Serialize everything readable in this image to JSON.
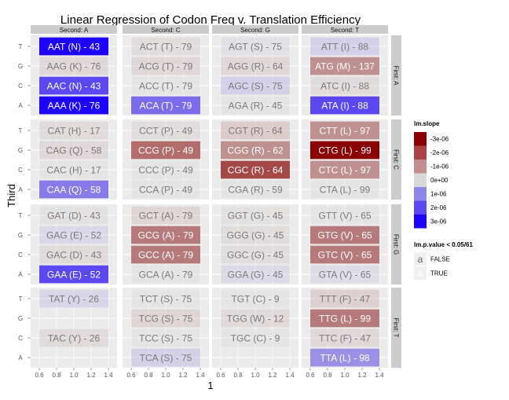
{
  "chart_data": {
    "type": "heatmap",
    "title": "Linear Regression of Codon Freq v. Translation Efficiency",
    "xlabel": "1",
    "ylabel": "Third",
    "col_facets": [
      "Second: A",
      "Second: C",
      "Second: G",
      "Second: T"
    ],
    "row_facets": [
      "First: A",
      "First: C",
      "First: G",
      "First: T"
    ],
    "y_ticks": [
      "T",
      "G",
      "C",
      "A"
    ],
    "x_ticks": [
      "0.6",
      "0.8",
      "1.0",
      "1.2",
      "1.4"
    ],
    "xlim": [
      0.5,
      1.5
    ],
    "legend_fill": {
      "title": "lm.slope",
      "labels": [
        "-3e-06",
        "-2e-06",
        "-1e-06",
        "0e+00",
        "1e-06",
        "2e-06",
        "3e-06"
      ],
      "colors": [
        "#8b0000",
        "#a94344",
        "#c48d8d",
        "#d8d8d8",
        "#8f87e8",
        "#5a48f0",
        "#1e00ff"
      ]
    },
    "legend_alpha": {
      "title": "lm.p.value < 0.05/61",
      "labels": [
        "FALSE",
        "TRUE"
      ]
    },
    "cells": [
      {
        "facet_row": 0,
        "facet_col": 0,
        "third": "T",
        "label": "AAT (N) - 43",
        "slope": 3.0,
        "sig": true
      },
      {
        "facet_row": 0,
        "facet_col": 0,
        "third": "G",
        "label": "AAG (K) - 76",
        "slope": -0.5,
        "sig": false
      },
      {
        "facet_row": 0,
        "facet_col": 0,
        "third": "C",
        "label": "AAC (N) - 43",
        "slope": 2.0,
        "sig": true
      },
      {
        "facet_row": 0,
        "facet_col": 0,
        "third": "A",
        "label": "AAA (K) - 76",
        "slope": 3.0,
        "sig": true
      },
      {
        "facet_row": 0,
        "facet_col": 1,
        "third": "T",
        "label": "ACT (T) - 79",
        "slope": -0.3,
        "sig": false
      },
      {
        "facet_row": 0,
        "facet_col": 1,
        "third": "G",
        "label": "ACG (T) - 79",
        "slope": -0.5,
        "sig": false
      },
      {
        "facet_row": 0,
        "facet_col": 1,
        "third": "C",
        "label": "ACC (T) - 79",
        "slope": 0.0,
        "sig": false
      },
      {
        "facet_row": 0,
        "facet_col": 1,
        "third": "A",
        "label": "ACA (T) - 79",
        "slope": 1.5,
        "sig": true
      },
      {
        "facet_row": 0,
        "facet_col": 2,
        "third": "T",
        "label": "AGT (S) - 75",
        "slope": 0.2,
        "sig": false
      },
      {
        "facet_row": 0,
        "facet_col": 2,
        "third": "G",
        "label": "AGG (R) - 64",
        "slope": -0.5,
        "sig": false
      },
      {
        "facet_row": 0,
        "facet_col": 2,
        "third": "C",
        "label": "AGC (S) - 75",
        "slope": 0.8,
        "sig": false
      },
      {
        "facet_row": 0,
        "facet_col": 2,
        "third": "A",
        "label": "AGA (R) - 45",
        "slope": 0.0,
        "sig": false
      },
      {
        "facet_row": 0,
        "facet_col": 3,
        "third": "T",
        "label": "ATT (I) - 88",
        "slope": 0.8,
        "sig": false
      },
      {
        "facet_row": 0,
        "facet_col": 3,
        "third": "G",
        "label": "ATG (M) - 137",
        "slope": -1.0,
        "sig": true
      },
      {
        "facet_row": 0,
        "facet_col": 3,
        "third": "C",
        "label": "ATC (I) - 88",
        "slope": -0.4,
        "sig": false
      },
      {
        "facet_row": 0,
        "facet_col": 3,
        "third": "A",
        "label": "ATA (I) - 88",
        "slope": 2.0,
        "sig": true
      },
      {
        "facet_row": 1,
        "facet_col": 0,
        "third": "T",
        "label": "CAT (H) - 17",
        "slope": -0.4,
        "sig": false
      },
      {
        "facet_row": 1,
        "facet_col": 0,
        "third": "G",
        "label": "CAG (Q) - 58",
        "slope": -0.5,
        "sig": false
      },
      {
        "facet_row": 1,
        "facet_col": 0,
        "third": "C",
        "label": "CAC (H) - 17",
        "slope": 0.0,
        "sig": false
      },
      {
        "facet_row": 1,
        "facet_col": 0,
        "third": "A",
        "label": "CAA (Q) - 58",
        "slope": 1.3,
        "sig": true
      },
      {
        "facet_row": 1,
        "facet_col": 1,
        "third": "T",
        "label": "CCT (P) - 49",
        "slope": -0.3,
        "sig": false
      },
      {
        "facet_row": 1,
        "facet_col": 1,
        "third": "G",
        "label": "CCG (P) - 49",
        "slope": -1.5,
        "sig": true
      },
      {
        "facet_row": 1,
        "facet_col": 1,
        "third": "C",
        "label": "CCC (P) - 49",
        "slope": 0.0,
        "sig": false
      },
      {
        "facet_row": 1,
        "facet_col": 1,
        "third": "A",
        "label": "CCA (P) - 49",
        "slope": 0.0,
        "sig": false
      },
      {
        "facet_row": 1,
        "facet_col": 2,
        "third": "T",
        "label": "CGT (R) - 64",
        "slope": -1.0,
        "sig": false
      },
      {
        "facet_row": 1,
        "facet_col": 2,
        "third": "G",
        "label": "CGG (R) - 62",
        "slope": -1.0,
        "sig": true
      },
      {
        "facet_row": 1,
        "facet_col": 2,
        "third": "C",
        "label": "CGC (R) - 64",
        "slope": -2.0,
        "sig": true
      },
      {
        "facet_row": 1,
        "facet_col": 2,
        "third": "A",
        "label": "CGA (R) - 59",
        "slope": 0.0,
        "sig": false
      },
      {
        "facet_row": 1,
        "facet_col": 3,
        "third": "T",
        "label": "CTT (L) - 97",
        "slope": -1.0,
        "sig": true
      },
      {
        "facet_row": 1,
        "facet_col": 3,
        "third": "G",
        "label": "CTG (L) - 99",
        "slope": -3.0,
        "sig": true
      },
      {
        "facet_row": 1,
        "facet_col": 3,
        "third": "C",
        "label": "CTC (L) - 97",
        "slope": -1.0,
        "sig": true
      },
      {
        "facet_row": 1,
        "facet_col": 3,
        "third": "A",
        "label": "CTA (L) - 99",
        "slope": 0.0,
        "sig": false
      },
      {
        "facet_row": 2,
        "facet_col": 0,
        "third": "T",
        "label": "GAT (D) - 43",
        "slope": -0.2,
        "sig": false
      },
      {
        "facet_row": 2,
        "facet_col": 0,
        "third": "G",
        "label": "GAG (E) - 52",
        "slope": 0.5,
        "sig": false
      },
      {
        "facet_row": 2,
        "facet_col": 0,
        "third": "C",
        "label": "GAC (D) - 43",
        "slope": -0.4,
        "sig": false
      },
      {
        "facet_row": 2,
        "facet_col": 0,
        "third": "A",
        "label": "GAA (E) - 52",
        "slope": 2.0,
        "sig": true
      },
      {
        "facet_row": 2,
        "facet_col": 1,
        "third": "T",
        "label": "GCT (A) - 79",
        "slope": -0.6,
        "sig": false
      },
      {
        "facet_row": 2,
        "facet_col": 1,
        "third": "G",
        "label": "GCG (A) - 79",
        "slope": -1.3,
        "sig": true
      },
      {
        "facet_row": 2,
        "facet_col": 1,
        "third": "C",
        "label": "GCC (A) - 79",
        "slope": -1.3,
        "sig": true
      },
      {
        "facet_row": 2,
        "facet_col": 1,
        "third": "A",
        "label": "GCA (A) - 79",
        "slope": 0.0,
        "sig": false
      },
      {
        "facet_row": 2,
        "facet_col": 2,
        "third": "T",
        "label": "GGT (G) - 45",
        "slope": -0.2,
        "sig": false
      },
      {
        "facet_row": 2,
        "facet_col": 2,
        "third": "G",
        "label": "GGG (G) - 45",
        "slope": -0.3,
        "sig": false
      },
      {
        "facet_row": 2,
        "facet_col": 2,
        "third": "C",
        "label": "GGC (G) - 45",
        "slope": -0.3,
        "sig": false
      },
      {
        "facet_row": 2,
        "facet_col": 2,
        "third": "A",
        "label": "GGA (G) - 45",
        "slope": 0.4,
        "sig": false
      },
      {
        "facet_row": 2,
        "facet_col": 3,
        "third": "T",
        "label": "GTT (V) - 65",
        "slope": 0.0,
        "sig": false
      },
      {
        "facet_row": 2,
        "facet_col": 3,
        "third": "G",
        "label": "GTG (V) - 65",
        "slope": -1.3,
        "sig": true
      },
      {
        "facet_row": 2,
        "facet_col": 3,
        "third": "C",
        "label": "GTC (V) - 65",
        "slope": -1.3,
        "sig": true
      },
      {
        "facet_row": 2,
        "facet_col": 3,
        "third": "A",
        "label": "GTA (V) - 65",
        "slope": 0.3,
        "sig": false
      },
      {
        "facet_row": 3,
        "facet_col": 0,
        "third": "T",
        "label": "TAT (Y) - 26",
        "slope": 0.6,
        "sig": false
      },
      {
        "facet_row": 3,
        "facet_col": 0,
        "third": "C",
        "label": "TAC (Y) - 26",
        "slope": -0.4,
        "sig": false
      },
      {
        "facet_row": 3,
        "facet_col": 1,
        "third": "T",
        "label": "TCT (S) - 75",
        "slope": 0.0,
        "sig": false
      },
      {
        "facet_row": 3,
        "facet_col": 1,
        "third": "G",
        "label": "TCG (S) - 75",
        "slope": -0.6,
        "sig": false
      },
      {
        "facet_row": 3,
        "facet_col": 1,
        "third": "C",
        "label": "TCC (S) - 75",
        "slope": 0.0,
        "sig": false
      },
      {
        "facet_row": 3,
        "facet_col": 1,
        "third": "A",
        "label": "TCA (S) - 75",
        "slope": 0.8,
        "sig": false
      },
      {
        "facet_row": 3,
        "facet_col": 2,
        "third": "T",
        "label": "TGT (C) - 9",
        "slope": 0.0,
        "sig": false
      },
      {
        "facet_row": 3,
        "facet_col": 2,
        "third": "G",
        "label": "TGG (W) - 12",
        "slope": -0.4,
        "sig": false
      },
      {
        "facet_row": 3,
        "facet_col": 2,
        "third": "C",
        "label": "TGC (C) - 9",
        "slope": 0.0,
        "sig": false
      },
      {
        "facet_row": 3,
        "facet_col": 3,
        "third": "T",
        "label": "TTT (F) - 47",
        "slope": -0.8,
        "sig": false
      },
      {
        "facet_row": 3,
        "facet_col": 3,
        "third": "G",
        "label": "TTG (L) - 99",
        "slope": -1.3,
        "sig": true
      },
      {
        "facet_row": 3,
        "facet_col": 3,
        "third": "C",
        "label": "TTC (F) - 47",
        "slope": -0.5,
        "sig": false
      },
      {
        "facet_row": 3,
        "facet_col": 3,
        "third": "A",
        "label": "TTA (L) - 98",
        "slope": 1.0,
        "sig": true
      }
    ]
  }
}
